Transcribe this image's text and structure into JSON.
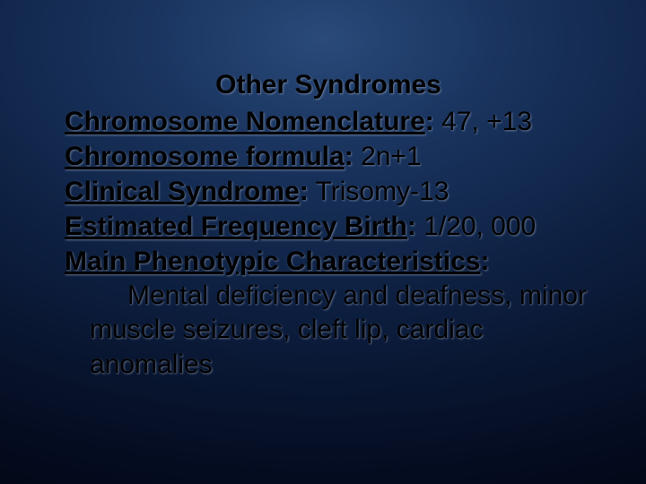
{
  "slide": {
    "title": "Other Syndromes",
    "lines": [
      {
        "label": "Chromosome Nomenclature",
        "value": "47, +13"
      },
      {
        "label": "Chromosome formula",
        "value": "2n+1"
      },
      {
        "label": "Clinical Syndrome",
        "value": "Trisomy-13"
      },
      {
        "label": "Estimated Frequency Birth",
        "value": "1/20, 000"
      },
      {
        "label": "Main Phenotypic Characteristics",
        "value": ""
      }
    ],
    "body": "Mental deficiency and deafness, minor muscle seizures, cleft lip, cardiac anomalies",
    "colors": {
      "text": "#000000",
      "bg_center": "#2a4a7a",
      "bg_mid": "#0d1f40",
      "bg_edge": "#020512"
    },
    "font_size_pt": 22,
    "font_weight_label": "bold",
    "font_weight_value": "normal"
  }
}
